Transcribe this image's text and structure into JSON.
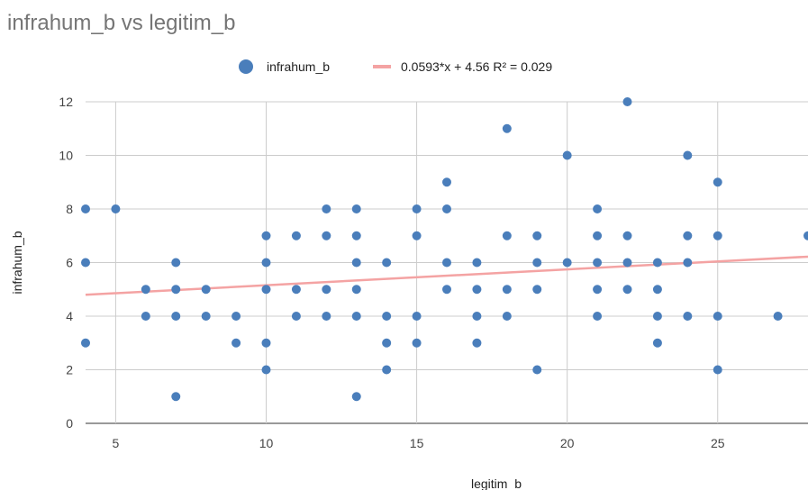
{
  "chart_data": {
    "type": "scatter",
    "title": "infrahum_b vs legitim_b",
    "xlabel": "legitim_b",
    "ylabel": "infrahum_b",
    "xlim": [
      4,
      28
    ],
    "ylim": [
      0,
      12
    ],
    "x_ticks": [
      5,
      10,
      15,
      20,
      25
    ],
    "y_ticks": [
      0,
      2,
      4,
      6,
      8,
      10,
      12
    ],
    "grid": true,
    "legend_position": "top",
    "series": [
      {
        "name": "infrahum_b",
        "color": "#4a7ebb",
        "points": [
          [
            4,
            3
          ],
          [
            4,
            6
          ],
          [
            4,
            8
          ],
          [
            5,
            8
          ],
          [
            6,
            4
          ],
          [
            6,
            5
          ],
          [
            7,
            1
          ],
          [
            7,
            4
          ],
          [
            7,
            5
          ],
          [
            7,
            6
          ],
          [
            8,
            4
          ],
          [
            8,
            5
          ],
          [
            9,
            3
          ],
          [
            9,
            4
          ],
          [
            10,
            2
          ],
          [
            10,
            3
          ],
          [
            10,
            5
          ],
          [
            10,
            6
          ],
          [
            10,
            7
          ],
          [
            11,
            4
          ],
          [
            11,
            5
          ],
          [
            11,
            7
          ],
          [
            12,
            4
          ],
          [
            12,
            5
          ],
          [
            12,
            7
          ],
          [
            12,
            8
          ],
          [
            13,
            1
          ],
          [
            13,
            4
          ],
          [
            13,
            5
          ],
          [
            13,
            6
          ],
          [
            13,
            7
          ],
          [
            13,
            8
          ],
          [
            14,
            2
          ],
          [
            14,
            3
          ],
          [
            14,
            4
          ],
          [
            14,
            6
          ],
          [
            15,
            3
          ],
          [
            15,
            4
          ],
          [
            15,
            7
          ],
          [
            15,
            8
          ],
          [
            16,
            5
          ],
          [
            16,
            6
          ],
          [
            16,
            8
          ],
          [
            16,
            9
          ],
          [
            17,
            3
          ],
          [
            17,
            4
          ],
          [
            17,
            5
          ],
          [
            17,
            6
          ],
          [
            18,
            4
          ],
          [
            18,
            5
          ],
          [
            18,
            7
          ],
          [
            18,
            11
          ],
          [
            19,
            2
          ],
          [
            19,
            5
          ],
          [
            19,
            6
          ],
          [
            19,
            7
          ],
          [
            20,
            6
          ],
          [
            20,
            10
          ],
          [
            21,
            4
          ],
          [
            21,
            5
          ],
          [
            21,
            6
          ],
          [
            21,
            7
          ],
          [
            21,
            8
          ],
          [
            22,
            5
          ],
          [
            22,
            6
          ],
          [
            22,
            7
          ],
          [
            22,
            12
          ],
          [
            23,
            3
          ],
          [
            23,
            4
          ],
          [
            23,
            5
          ],
          [
            23,
            6
          ],
          [
            24,
            4
          ],
          [
            24,
            6
          ],
          [
            24,
            7
          ],
          [
            24,
            10
          ],
          [
            25,
            2
          ],
          [
            25,
            4
          ],
          [
            25,
            7
          ],
          [
            25,
            9
          ],
          [
            27,
            4
          ],
          [
            28,
            7
          ]
        ]
      },
      {
        "name": "0.0593*x + 4.56 R² = 0.029",
        "type": "trendline",
        "color": "#f4a3a3",
        "slope": 0.0593,
        "intercept": 4.56,
        "r2": 0.029
      }
    ]
  }
}
